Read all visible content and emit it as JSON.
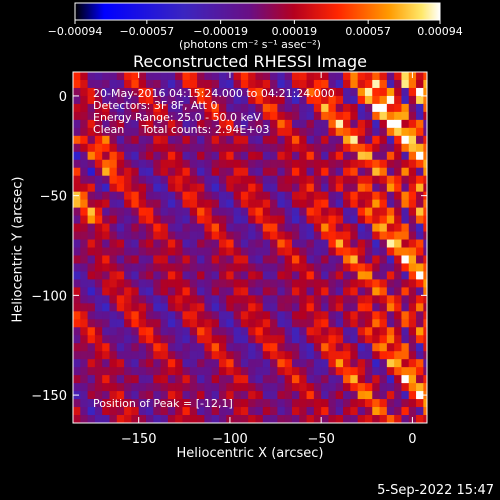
{
  "chart_data": {
    "type": "heatmap",
    "title": "Reconstructed RHESSI Image",
    "xlabel": "Heliocentric X (arcsec)",
    "ylabel": "Heliocentric Y (arcsec)",
    "xlim": [
      -186,
      8
    ],
    "ylim": [
      -164,
      12
    ],
    "xticks": [
      -150,
      -100,
      -50,
      0
    ],
    "xtick_labels": [
      "−150",
      "−100",
      "−50",
      "0"
    ],
    "yticks": [
      0,
      -50,
      -100,
      -150
    ],
    "ytick_labels": [
      "0",
      "−50",
      "−100",
      "−150"
    ],
    "colorbar": {
      "range": [
        -0.00094,
        0.00094
      ],
      "ticks": [
        -0.00094,
        -0.00057,
        -0.00019,
        0.00019,
        0.00057,
        0.00094
      ],
      "tick_labels": [
        "−0.00094",
        "−0.00057",
        "−0.00019",
        "0.00019",
        "0.00057",
        "0.00094"
      ],
      "units": "(photons cm⁻² s⁻¹ asec⁻²)"
    },
    "annotations": {
      "time_range": "20-May-2016 04:15:24.000 to 04:21:24.000",
      "detectors": "Detectors: 3F 8F, Att 0",
      "energy": "Energy Range: 25.0 - 50.0 keV",
      "clean": "Clean     Total counts: 2.94E+03",
      "peak": "Position of Peak = [-12,1]"
    },
    "colors": {
      "scale": [
        "#000000",
        "#0000ff",
        "#3b25c0",
        "#6a0f84",
        "#b5001f",
        "#ff2600",
        "#ff9a00",
        "#ffe86a",
        "#ffffff"
      ]
    }
  },
  "footer": {
    "date": "5-Sep-2022 15:47"
  }
}
